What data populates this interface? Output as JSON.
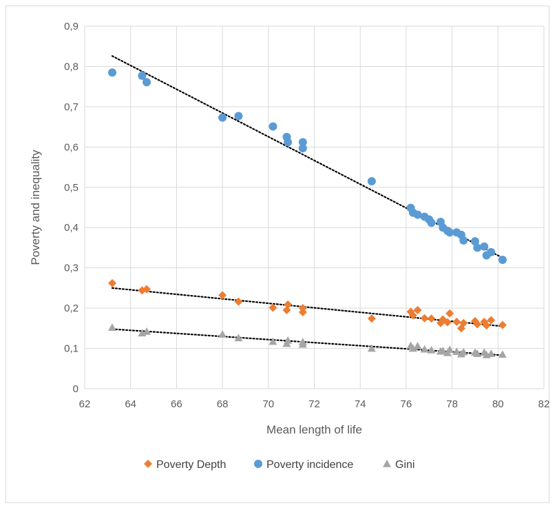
{
  "chart_data": {
    "type": "scatter",
    "title": "",
    "xlabel": "Mean length of life",
    "ylabel": "Poverty and inequality",
    "xlim": [
      62,
      82
    ],
    "ylim": [
      0,
      0.9
    ],
    "x_ticks": [
      62,
      64,
      66,
      68,
      70,
      72,
      74,
      76,
      78,
      80,
      82
    ],
    "x_tick_labels": [
      "62",
      "64",
      "66",
      "68",
      "70",
      "72",
      "74",
      "76",
      "78",
      "80",
      "82"
    ],
    "y_ticks": [
      0,
      0.1,
      0.2,
      0.3,
      0.4,
      0.5,
      0.6,
      0.7,
      0.8,
      0.9
    ],
    "y_tick_labels": [
      "0",
      "0,1",
      "0,2",
      "0,3",
      "0,4",
      "0,5",
      "0,6",
      "0,7",
      "0,8",
      "0,9"
    ],
    "grid": "vertical and horizontal",
    "legend_position": "bottom",
    "trendline": "linear, dotted",
    "series": [
      {
        "name": "Poverty Depth",
        "marker": "diamond",
        "color": "#ED7D31",
        "trend": [
          [
            63.2,
            0.25
          ],
          [
            80.2,
            0.155
          ]
        ],
        "points": [
          [
            63.2,
            0.262
          ],
          [
            64.5,
            0.244
          ],
          [
            64.7,
            0.247
          ],
          [
            68.0,
            0.232
          ],
          [
            68.7,
            0.216
          ],
          [
            70.2,
            0.201
          ],
          [
            70.8,
            0.195
          ],
          [
            70.85,
            0.209
          ],
          [
            71.5,
            0.19
          ],
          [
            71.5,
            0.2
          ],
          [
            74.5,
            0.174
          ],
          [
            76.2,
            0.191
          ],
          [
            76.3,
            0.182
          ],
          [
            76.5,
            0.195
          ],
          [
            76.8,
            0.175
          ],
          [
            77.1,
            0.174
          ],
          [
            77.5,
            0.163
          ],
          [
            77.6,
            0.172
          ],
          [
            77.9,
            0.187
          ],
          [
            77.8,
            0.165
          ],
          [
            78.2,
            0.166
          ],
          [
            78.4,
            0.15
          ],
          [
            78.5,
            0.163
          ],
          [
            79.0,
            0.168
          ],
          [
            79.1,
            0.16
          ],
          [
            79.4,
            0.166
          ],
          [
            79.5,
            0.157
          ],
          [
            79.7,
            0.17
          ],
          [
            80.2,
            0.158
          ]
        ]
      },
      {
        "name": "Poverty incidence",
        "marker": "circle",
        "color": "#5B9BD5",
        "trend": [
          [
            63.2,
            0.826
          ],
          [
            80.2,
            0.325
          ]
        ],
        "points": [
          [
            63.2,
            0.785
          ],
          [
            64.5,
            0.777
          ],
          [
            64.7,
            0.761
          ],
          [
            68.0,
            0.673
          ],
          [
            68.7,
            0.677
          ],
          [
            70.2,
            0.651
          ],
          [
            70.8,
            0.625
          ],
          [
            70.85,
            0.612
          ],
          [
            71.5,
            0.612
          ],
          [
            71.5,
            0.597
          ],
          [
            74.5,
            0.515
          ],
          [
            76.2,
            0.449
          ],
          [
            76.3,
            0.437
          ],
          [
            76.5,
            0.432
          ],
          [
            76.8,
            0.427
          ],
          [
            77.0,
            0.42
          ],
          [
            77.1,
            0.412
          ],
          [
            77.5,
            0.414
          ],
          [
            77.6,
            0.4
          ],
          [
            77.8,
            0.392
          ],
          [
            77.9,
            0.388
          ],
          [
            78.2,
            0.388
          ],
          [
            78.4,
            0.382
          ],
          [
            78.5,
            0.368
          ],
          [
            79.0,
            0.366
          ],
          [
            79.1,
            0.35
          ],
          [
            79.4,
            0.353
          ],
          [
            79.5,
            0.331
          ],
          [
            79.7,
            0.339
          ],
          [
            80.2,
            0.32
          ]
        ]
      },
      {
        "name": "Gini",
        "marker": "triangle",
        "color": "#A5A5A5",
        "trend": [
          [
            63.2,
            0.148
          ],
          [
            80.2,
            0.083
          ]
        ],
        "points": [
          [
            63.2,
            0.152
          ],
          [
            64.5,
            0.138
          ],
          [
            64.7,
            0.142
          ],
          [
            68.0,
            0.135
          ],
          [
            68.7,
            0.126
          ],
          [
            70.2,
            0.117
          ],
          [
            70.8,
            0.112
          ],
          [
            70.85,
            0.12
          ],
          [
            71.5,
            0.11
          ],
          [
            71.5,
            0.116
          ],
          [
            74.5,
            0.1
          ],
          [
            76.2,
            0.107
          ],
          [
            76.3,
            0.1
          ],
          [
            76.5,
            0.106
          ],
          [
            76.8,
            0.098
          ],
          [
            77.1,
            0.096
          ],
          [
            77.5,
            0.093
          ],
          [
            77.6,
            0.094
          ],
          [
            77.8,
            0.089
          ],
          [
            77.9,
            0.097
          ],
          [
            78.2,
            0.092
          ],
          [
            78.4,
            0.086
          ],
          [
            78.5,
            0.091
          ],
          [
            79.0,
            0.09
          ],
          [
            79.1,
            0.087
          ],
          [
            79.4,
            0.09
          ],
          [
            79.5,
            0.084
          ],
          [
            79.7,
            0.087
          ],
          [
            80.2,
            0.085
          ]
        ]
      }
    ]
  }
}
